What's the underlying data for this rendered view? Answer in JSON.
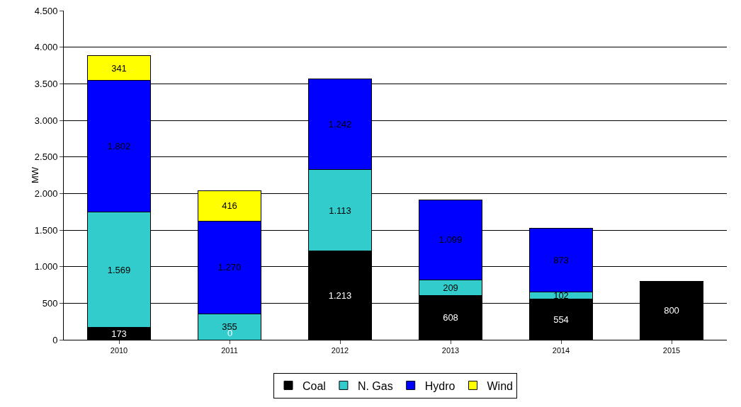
{
  "chart_data": {
    "type": "bar",
    "stacked": true,
    "ylabel": "MW",
    "categories": [
      "2010",
      "2011",
      "2012",
      "2013",
      "2014",
      "2015"
    ],
    "series": [
      {
        "name": "Coal",
        "color": "#000000",
        "values": [
          173,
          0,
          1213,
          608,
          554,
          800
        ],
        "value_labels": [
          "173",
          "0",
          "1.213",
          "608",
          "554",
          "800"
        ]
      },
      {
        "name": "N. Gas",
        "color": "#33cccc",
        "values": [
          1569,
          355,
          1113,
          209,
          102,
          null
        ],
        "value_labels": [
          "1.569",
          "355",
          "1.113",
          "209",
          "102",
          null
        ]
      },
      {
        "name": "Hydro",
        "color": "#0000ff",
        "values": [
          1802,
          1270,
          1242,
          1099,
          873,
          null
        ],
        "value_labels": [
          "1.802",
          "1.270",
          "1.242",
          "1.099",
          "873",
          null
        ]
      },
      {
        "name": "Wind",
        "color": "#ffff00",
        "values": [
          341,
          416,
          null,
          null,
          null,
          null
        ],
        "value_labels": [
          "341",
          "416",
          null,
          null,
          null,
          null
        ]
      }
    ],
    "ylim": [
      0,
      4500
    ],
    "yticks": [
      0,
      500,
      {
        "value": 1000,
        "label": "1.000"
      },
      {
        "value": 1500,
        "label": "1.500"
      },
      {
        "value": 2000,
        "label": "2.000"
      },
      {
        "value": 2500,
        "label": "2.500"
      },
      {
        "value": 3000,
        "label": "3.000"
      },
      {
        "value": 3500,
        "label": "3.500"
      },
      {
        "value": 4000,
        "label": "4.000"
      },
      {
        "value": 4500,
        "label": "4.500"
      }
    ],
    "grid": "y",
    "legend": "bottom"
  }
}
